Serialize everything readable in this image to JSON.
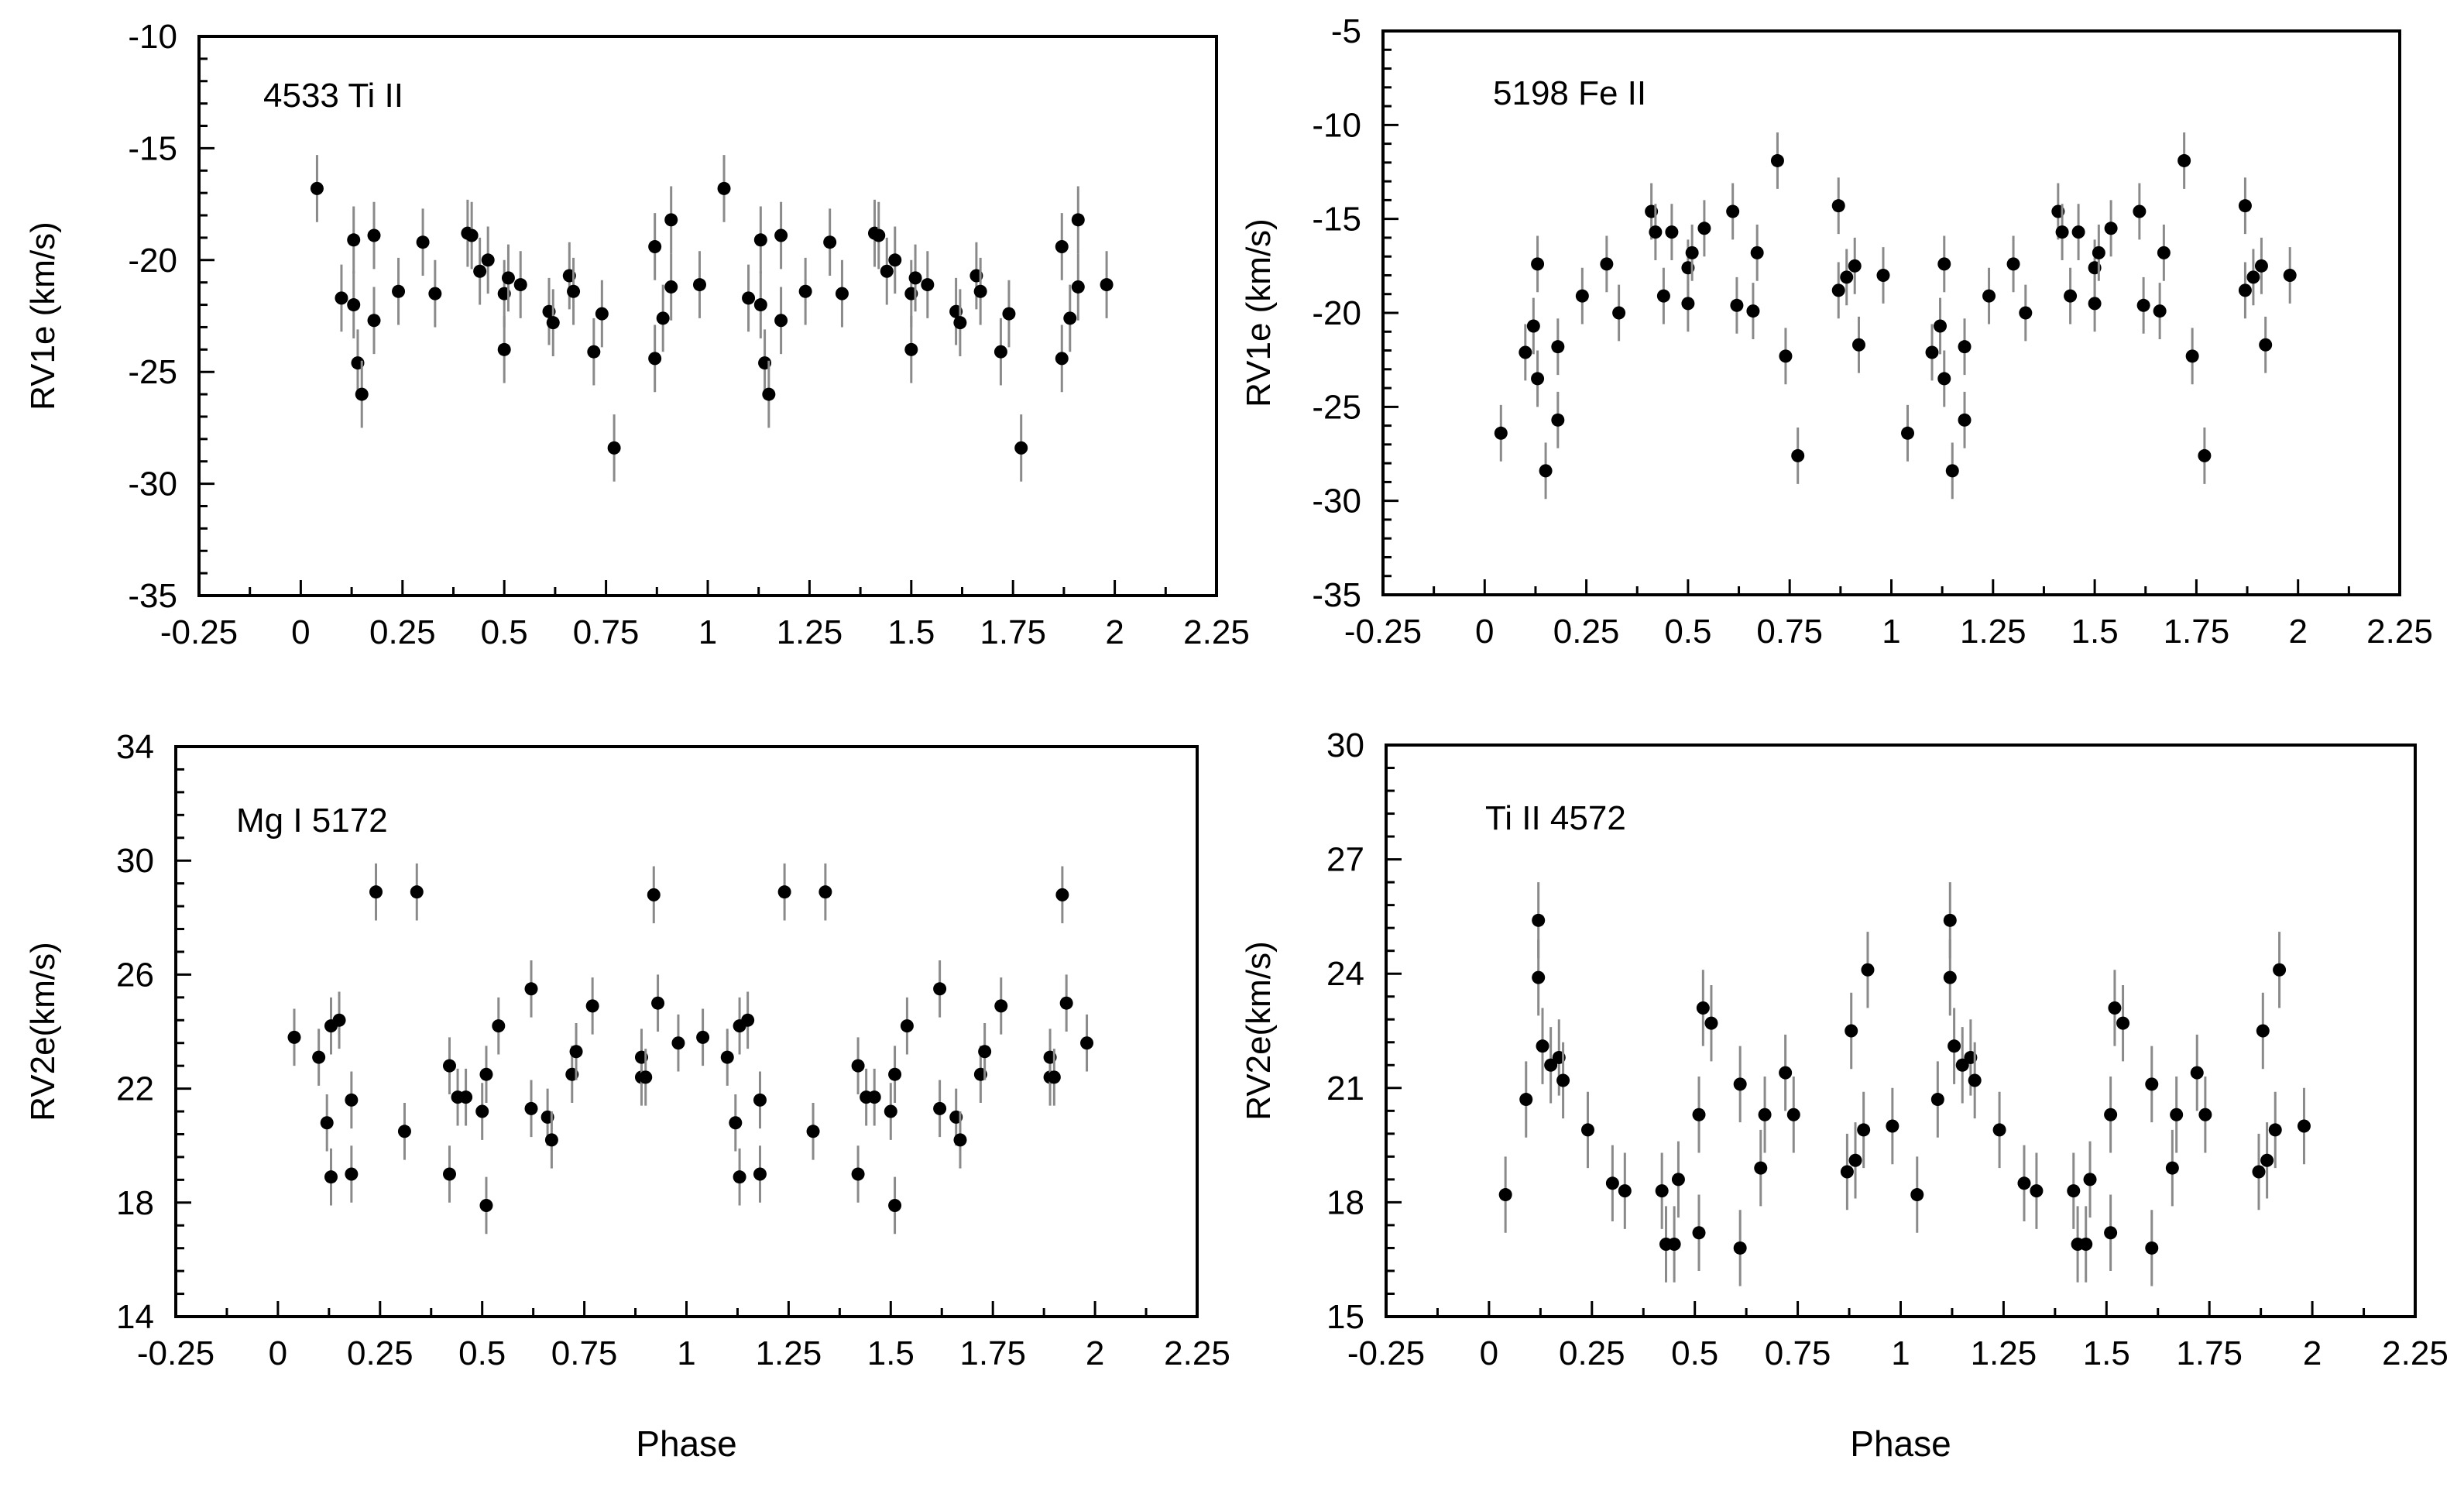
{
  "chart_data": [
    {
      "type": "scatter",
      "panel": "top-left",
      "annotation": "4533 Ti II",
      "xlabel": "",
      "ylabel": "RV1e (km/s)",
      "xlim": [
        -0.25,
        2.25
      ],
      "ylim": [
        -35,
        -10
      ],
      "xticks": [
        -0.25,
        0,
        0.25,
        0.5,
        0.75,
        1,
        1.25,
        1.5,
        1.75,
        2,
        2.25
      ],
      "xtick_labels": [
        "-0.25",
        "0",
        "0.25",
        "0.5",
        "0.75",
        "1",
        "1.25",
        "1.5",
        "1.75",
        "2",
        "2.25"
      ],
      "yticks": [
        -10,
        -15,
        -20,
        -25,
        -30,
        -35
      ],
      "ytick_labels": [
        "-10",
        "-15",
        "-20",
        "-25",
        "-30",
        "-35"
      ],
      "error": 1.5,
      "points": [
        [
          0.04,
          -16.8
        ],
        [
          0.1,
          -21.7
        ],
        [
          0.13,
          -22.0
        ],
        [
          0.13,
          -19.1
        ],
        [
          0.14,
          -24.6
        ],
        [
          0.15,
          -26.0
        ],
        [
          0.18,
          -18.9
        ],
        [
          0.18,
          -22.7
        ],
        [
          0.24,
          -21.4
        ],
        [
          0.3,
          -19.2
        ],
        [
          0.33,
          -21.5
        ],
        [
          0.41,
          -18.8
        ],
        [
          0.42,
          -18.9
        ],
        [
          0.44,
          -20.5
        ],
        [
          0.46,
          -20.0
        ],
        [
          0.5,
          -21.5
        ],
        [
          0.5,
          -24.0
        ],
        [
          0.51,
          -20.8
        ],
        [
          0.54,
          -21.1
        ],
        [
          0.61,
          -22.3
        ],
        [
          0.62,
          -22.8
        ],
        [
          0.66,
          -20.7
        ],
        [
          0.67,
          -21.4
        ],
        [
          0.72,
          -24.1
        ],
        [
          0.74,
          -22.4
        ],
        [
          0.77,
          -28.4
        ],
        [
          0.87,
          -24.4
        ],
        [
          0.87,
          -19.4
        ],
        [
          0.89,
          -22.6
        ],
        [
          0.91,
          -18.2
        ],
        [
          0.91,
          -21.2
        ],
        [
          0.98,
          -21.1
        ],
        [
          1.04,
          -16.8
        ],
        [
          1.1,
          -21.7
        ],
        [
          1.13,
          -22.0
        ],
        [
          1.13,
          -19.1
        ],
        [
          1.14,
          -24.6
        ],
        [
          1.15,
          -26.0
        ],
        [
          1.18,
          -18.9
        ],
        [
          1.18,
          -22.7
        ],
        [
          1.24,
          -21.4
        ],
        [
          1.3,
          -19.2
        ],
        [
          1.33,
          -21.5
        ],
        [
          1.41,
          -18.8
        ],
        [
          1.42,
          -18.9
        ],
        [
          1.44,
          -20.5
        ],
        [
          1.46,
          -20.0
        ],
        [
          1.5,
          -21.5
        ],
        [
          1.5,
          -24.0
        ],
        [
          1.51,
          -20.8
        ],
        [
          1.54,
          -21.1
        ],
        [
          1.61,
          -22.3
        ],
        [
          1.62,
          -22.8
        ],
        [
          1.66,
          -20.7
        ],
        [
          1.67,
          -21.4
        ],
        [
          1.72,
          -24.1
        ],
        [
          1.74,
          -22.4
        ],
        [
          1.77,
          -28.4
        ],
        [
          1.87,
          -24.4
        ],
        [
          1.87,
          -19.4
        ],
        [
          1.89,
          -22.6
        ],
        [
          1.91,
          -18.2
        ],
        [
          1.91,
          -21.2
        ],
        [
          1.98,
          -21.1
        ]
      ]
    },
    {
      "type": "scatter",
      "panel": "top-right",
      "annotation": "5198 Fe II",
      "xlabel": "",
      "ylabel": "RV1e (km/s)",
      "xlim": [
        -0.25,
        2.25
      ],
      "ylim": [
        -35,
        -5
      ],
      "xticks": [
        -0.25,
        0,
        0.25,
        0.5,
        0.75,
        1,
        1.25,
        1.5,
        1.75,
        2,
        2.25
      ],
      "xtick_labels": [
        "-0.25",
        "0",
        "0.25",
        "0.5",
        "0.75",
        "1",
        "1.25",
        "1.5",
        "1.75",
        "2",
        "2.25"
      ],
      "yticks": [
        -5,
        -10,
        -15,
        -20,
        -25,
        -30,
        -35
      ],
      "ytick_labels": [
        "-5",
        "-10",
        "-15",
        "-20",
        "-25",
        "-30",
        "-35"
      ],
      "error": 1.5,
      "points": [
        [
          0.04,
          -26.4
        ],
        [
          0.1,
          -22.1
        ],
        [
          0.12,
          -20.7
        ],
        [
          0.13,
          -17.4
        ],
        [
          0.13,
          -23.5
        ],
        [
          0.15,
          -28.4
        ],
        [
          0.18,
          -21.8
        ],
        [
          0.18,
          -25.7
        ],
        [
          0.24,
          -19.1
        ],
        [
          0.3,
          -17.4
        ],
        [
          0.33,
          -20.0
        ],
        [
          0.41,
          -14.6
        ],
        [
          0.42,
          -15.7
        ],
        [
          0.44,
          -19.1
        ],
        [
          0.46,
          -15.7
        ],
        [
          0.5,
          -17.6
        ],
        [
          0.5,
          -19.5
        ],
        [
          0.51,
          -16.8
        ],
        [
          0.54,
          -15.5
        ],
        [
          0.61,
          -14.6
        ],
        [
          0.62,
          -19.6
        ],
        [
          0.66,
          -19.9
        ],
        [
          0.67,
          -16.8
        ],
        [
          0.72,
          -11.9
        ],
        [
          0.74,
          -22.3
        ],
        [
          0.77,
          -27.6
        ],
        [
          0.87,
          -18.8
        ],
        [
          0.87,
          -14.3
        ],
        [
          0.89,
          -18.1
        ],
        [
          0.91,
          -17.5
        ],
        [
          0.92,
          -21.7
        ],
        [
          0.98,
          -18.0
        ],
        [
          1.04,
          -26.4
        ],
        [
          1.1,
          -22.1
        ],
        [
          1.12,
          -20.7
        ],
        [
          1.13,
          -17.4
        ],
        [
          1.13,
          -23.5
        ],
        [
          1.15,
          -28.4
        ],
        [
          1.18,
          -21.8
        ],
        [
          1.18,
          -25.7
        ],
        [
          1.24,
          -19.1
        ],
        [
          1.3,
          -17.4
        ],
        [
          1.33,
          -20.0
        ],
        [
          1.41,
          -14.6
        ],
        [
          1.42,
          -15.7
        ],
        [
          1.44,
          -19.1
        ],
        [
          1.46,
          -15.7
        ],
        [
          1.5,
          -17.6
        ],
        [
          1.5,
          -19.5
        ],
        [
          1.51,
          -16.8
        ],
        [
          1.54,
          -15.5
        ],
        [
          1.61,
          -14.6
        ],
        [
          1.62,
          -19.6
        ],
        [
          1.66,
          -19.9
        ],
        [
          1.67,
          -16.8
        ],
        [
          1.72,
          -11.9
        ],
        [
          1.74,
          -22.3
        ],
        [
          1.77,
          -27.6
        ],
        [
          1.87,
          -18.8
        ],
        [
          1.87,
          -14.3
        ],
        [
          1.89,
          -18.1
        ],
        [
          1.91,
          -17.5
        ],
        [
          1.92,
          -21.7
        ],
        [
          1.98,
          -18.0
        ]
      ]
    },
    {
      "type": "scatter",
      "panel": "bottom-left",
      "annotation": "Mg I  5172",
      "xlabel": "Phase",
      "ylabel": "RV2e(km/s)",
      "xlim": [
        -0.25,
        2.25
      ],
      "ylim": [
        14,
        34
      ],
      "xticks": [
        -0.25,
        0,
        0.25,
        0.5,
        0.75,
        1,
        1.25,
        1.5,
        1.75,
        2,
        2.25
      ],
      "xtick_labels": [
        "-0.25",
        "0",
        "0.25",
        "0.5",
        "0.75",
        "1",
        "1.25",
        "1.5",
        "1.75",
        "2",
        "2.25"
      ],
      "yticks": [
        14,
        18,
        22,
        26,
        30,
        34
      ],
      "ytick_labels": [
        "14",
        "18",
        "22",
        "26",
        "30",
        "34"
      ],
      "error": 1.0,
      "points": [
        [
          0.04,
          23.8
        ],
        [
          0.1,
          23.1
        ],
        [
          0.12,
          20.8
        ],
        [
          0.13,
          24.2
        ],
        [
          0.13,
          18.9
        ],
        [
          0.15,
          24.4
        ],
        [
          0.18,
          19.0
        ],
        [
          0.18,
          21.6
        ],
        [
          0.24,
          28.9
        ],
        [
          0.31,
          20.5
        ],
        [
          0.34,
          28.9
        ],
        [
          0.42,
          22.8
        ],
        [
          0.42,
          19.0
        ],
        [
          0.44,
          21.7
        ],
        [
          0.46,
          21.7
        ],
        [
          0.5,
          21.2
        ],
        [
          0.51,
          22.5
        ],
        [
          0.51,
          17.9
        ],
        [
          0.54,
          24.2
        ],
        [
          0.62,
          25.5
        ],
        [
          0.62,
          21.3
        ],
        [
          0.66,
          21.0
        ],
        [
          0.67,
          20.2
        ],
        [
          0.72,
          22.5
        ],
        [
          0.73,
          23.3
        ],
        [
          0.77,
          24.9
        ],
        [
          0.89,
          22.4
        ],
        [
          0.89,
          23.1
        ],
        [
          0.9,
          22.4
        ],
        [
          0.92,
          28.8
        ],
        [
          0.93,
          25.0
        ],
        [
          0.98,
          23.6
        ],
        [
          1.04,
          23.8
        ],
        [
          1.1,
          23.1
        ],
        [
          1.12,
          20.8
        ],
        [
          1.13,
          24.2
        ],
        [
          1.13,
          18.9
        ],
        [
          1.15,
          24.4
        ],
        [
          1.18,
          19.0
        ],
        [
          1.18,
          21.6
        ],
        [
          1.24,
          28.9
        ],
        [
          1.31,
          20.5
        ],
        [
          1.34,
          28.9
        ],
        [
          1.42,
          22.8
        ],
        [
          1.42,
          19.0
        ],
        [
          1.44,
          21.7
        ],
        [
          1.46,
          21.7
        ],
        [
          1.5,
          21.2
        ],
        [
          1.51,
          22.5
        ],
        [
          1.51,
          17.9
        ],
        [
          1.54,
          24.2
        ],
        [
          1.62,
          25.5
        ],
        [
          1.62,
          21.3
        ],
        [
          1.66,
          21.0
        ],
        [
          1.67,
          20.2
        ],
        [
          1.72,
          22.5
        ],
        [
          1.73,
          23.3
        ],
        [
          1.77,
          24.9
        ],
        [
          1.89,
          22.4
        ],
        [
          1.89,
          23.1
        ],
        [
          1.9,
          22.4
        ],
        [
          1.92,
          28.8
        ],
        [
          1.93,
          25.0
        ],
        [
          1.98,
          23.6
        ]
      ]
    },
    {
      "type": "scatter",
      "panel": "bottom-right",
      "annotation": "Ti II 4572",
      "xlabel": "Phase",
      "ylabel": "RV2e(km/s)",
      "xlim": [
        -0.25,
        2.25
      ],
      "ylim": [
        15,
        30
      ],
      "xticks": [
        -0.25,
        0,
        0.25,
        0.5,
        0.75,
        1,
        1.25,
        1.5,
        1.75,
        2,
        2.25
      ],
      "xtick_labels": [
        "-0.25",
        "0",
        "0.25",
        "0.5",
        "0.75",
        "1",
        "1.25",
        "1.5",
        "1.75",
        "2",
        "2.25"
      ],
      "yticks": [
        15,
        18,
        21,
        24,
        27,
        30
      ],
      "ytick_labels": [
        "15",
        "18",
        "21",
        "24",
        "27",
        "30"
      ],
      "error": 1.0,
      "points": [
        [
          0.04,
          18.2
        ],
        [
          0.09,
          20.7
        ],
        [
          0.12,
          23.9
        ],
        [
          0.12,
          25.4
        ],
        [
          0.13,
          22.1
        ],
        [
          0.15,
          21.6
        ],
        [
          0.17,
          21.8
        ],
        [
          0.18,
          21.2
        ],
        [
          0.24,
          19.9
        ],
        [
          0.3,
          18.5
        ],
        [
          0.33,
          18.3
        ],
        [
          0.42,
          18.3
        ],
        [
          0.43,
          16.9
        ],
        [
          0.45,
          16.9
        ],
        [
          0.46,
          18.6
        ],
        [
          0.51,
          17.2
        ],
        [
          0.51,
          20.3
        ],
        [
          0.52,
          23.1
        ],
        [
          0.54,
          22.7
        ],
        [
          0.61,
          16.8
        ],
        [
          0.61,
          21.1
        ],
        [
          0.66,
          18.9
        ],
        [
          0.67,
          20.3
        ],
        [
          0.72,
          21.4
        ],
        [
          0.74,
          20.3
        ],
        [
          0.87,
          18.8
        ],
        [
          0.88,
          22.5
        ],
        [
          0.89,
          19.1
        ],
        [
          0.91,
          19.9
        ],
        [
          0.92,
          24.1
        ],
        [
          0.98,
          20.0
        ],
        [
          1.04,
          18.2
        ],
        [
          1.09,
          20.7
        ],
        [
          1.12,
          23.9
        ],
        [
          1.12,
          25.4
        ],
        [
          1.13,
          22.1
        ],
        [
          1.15,
          21.6
        ],
        [
          1.17,
          21.8
        ],
        [
          1.18,
          21.2
        ],
        [
          1.24,
          19.9
        ],
        [
          1.3,
          18.5
        ],
        [
          1.33,
          18.3
        ],
        [
          1.42,
          18.3
        ],
        [
          1.43,
          16.9
        ],
        [
          1.45,
          16.9
        ],
        [
          1.46,
          18.6
        ],
        [
          1.51,
          17.2
        ],
        [
          1.51,
          20.3
        ],
        [
          1.52,
          23.1
        ],
        [
          1.54,
          22.7
        ],
        [
          1.61,
          16.8
        ],
        [
          1.61,
          21.1
        ],
        [
          1.66,
          18.9
        ],
        [
          1.67,
          20.3
        ],
        [
          1.72,
          21.4
        ],
        [
          1.74,
          20.3
        ],
        [
          1.87,
          18.8
        ],
        [
          1.88,
          22.5
        ],
        [
          1.89,
          19.1
        ],
        [
          1.91,
          19.9
        ],
        [
          1.92,
          24.1
        ],
        [
          1.98,
          20.0
        ]
      ]
    }
  ]
}
